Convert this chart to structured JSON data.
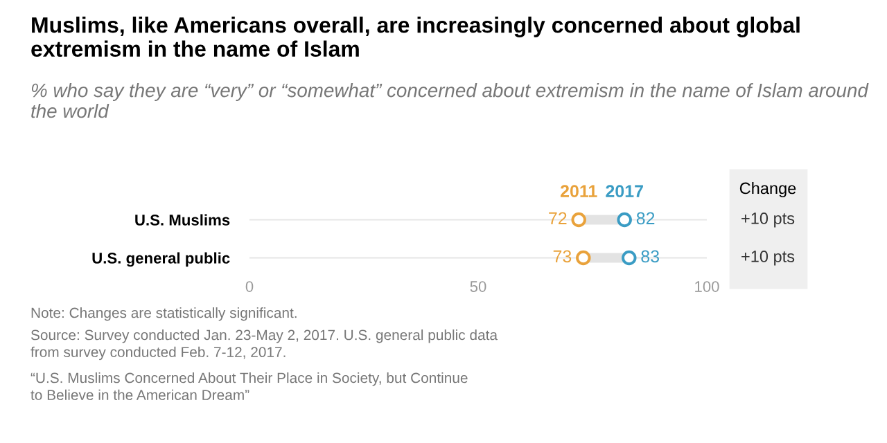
{
  "chart_data": {
    "type": "scatter",
    "orientation": "horizontal",
    "title": "Muslims, like Americans overall, are increasingly concerned about global extremism in the name of Islam",
    "subtitle": "% who say they are “very” or “somewhat” concerned about extremism in the name of Islam around the world",
    "categories": [
      "U.S. Muslims",
      "U.S. general public"
    ],
    "series": [
      {
        "name": "2011",
        "color": "#e9a23b",
        "values": [
          72,
          73
        ]
      },
      {
        "name": "2017",
        "color": "#3a9cc4",
        "values": [
          82,
          83
        ]
      }
    ],
    "xlim": [
      0,
      100
    ],
    "xticks": [
      0,
      50,
      100
    ],
    "grid": "y",
    "marker": "circle",
    "data_labels": true,
    "annotations": [
      "Change",
      "+10 pts",
      "+10 pts",
      "Note: Changes are statistically significant.",
      "Source: Survey conducted Jan. 23-May 2, 2017. U.S. general public data\nfrom survey conducted Feb. 7-12, 2017.",
      "“U.S. Muslims Concerned About Their Place in Society, but Continue\nto Believe in the American Dream”"
    ]
  }
}
